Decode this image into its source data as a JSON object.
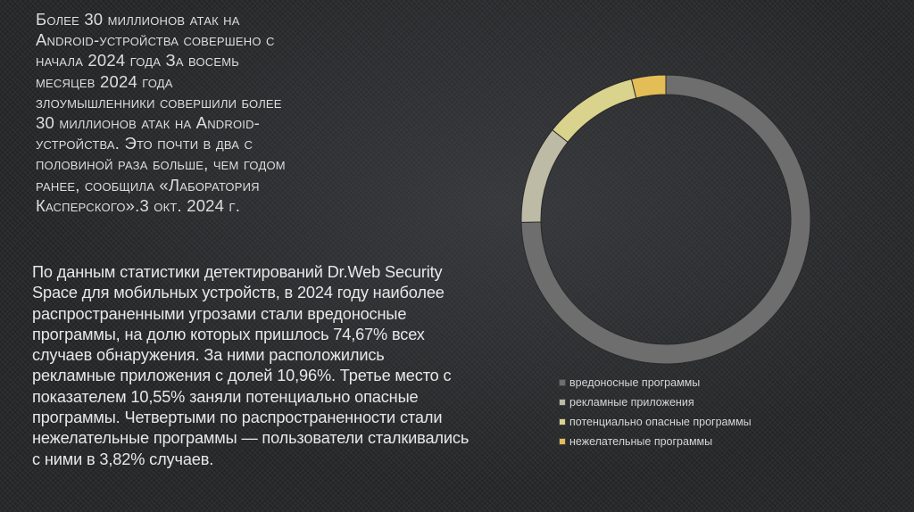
{
  "slide": {
    "title": "Более 30 миллионов атак на Android-устройства совершено с начала 2024 года За восемь месяцев 2024 года злоумышленники совершили более 30 миллионов атак на Android-устройства. Это почти в два с половиной раза больше, чем годом ранее, сообщила «Лаборатория Касперского».3 окт. 2024 г.",
    "body": "По данным статистики детектирований Dr.Web Security Space для мобильных устройств, в 2024 году наиболее распространенными угрозами стали вредоносные программы, на долю которых пришлось 74,67% всех случаев обнаружения. За ними расположились рекламные приложения с долей 10,96%. Третье место с показателем 10,55% заняли потенциально опасные программы. Четвертыми по распространенности стали нежелательные программы — пользователи сталкивались с ними в 3,82% случаев."
  },
  "chart_data": {
    "type": "pie",
    "style": "doughnut",
    "title": "",
    "legend_position": "bottom-right",
    "categories": [
      "вредоносные программы",
      "рекламные приложения",
      "потенциально опасные программы",
      "нежелательные программы"
    ],
    "values": [
      74.67,
      10.96,
      10.55,
      3.82
    ],
    "colors": [
      "#6e6e6e",
      "#bdbba6",
      "#d9d38d",
      "#e3bd55"
    ]
  }
}
